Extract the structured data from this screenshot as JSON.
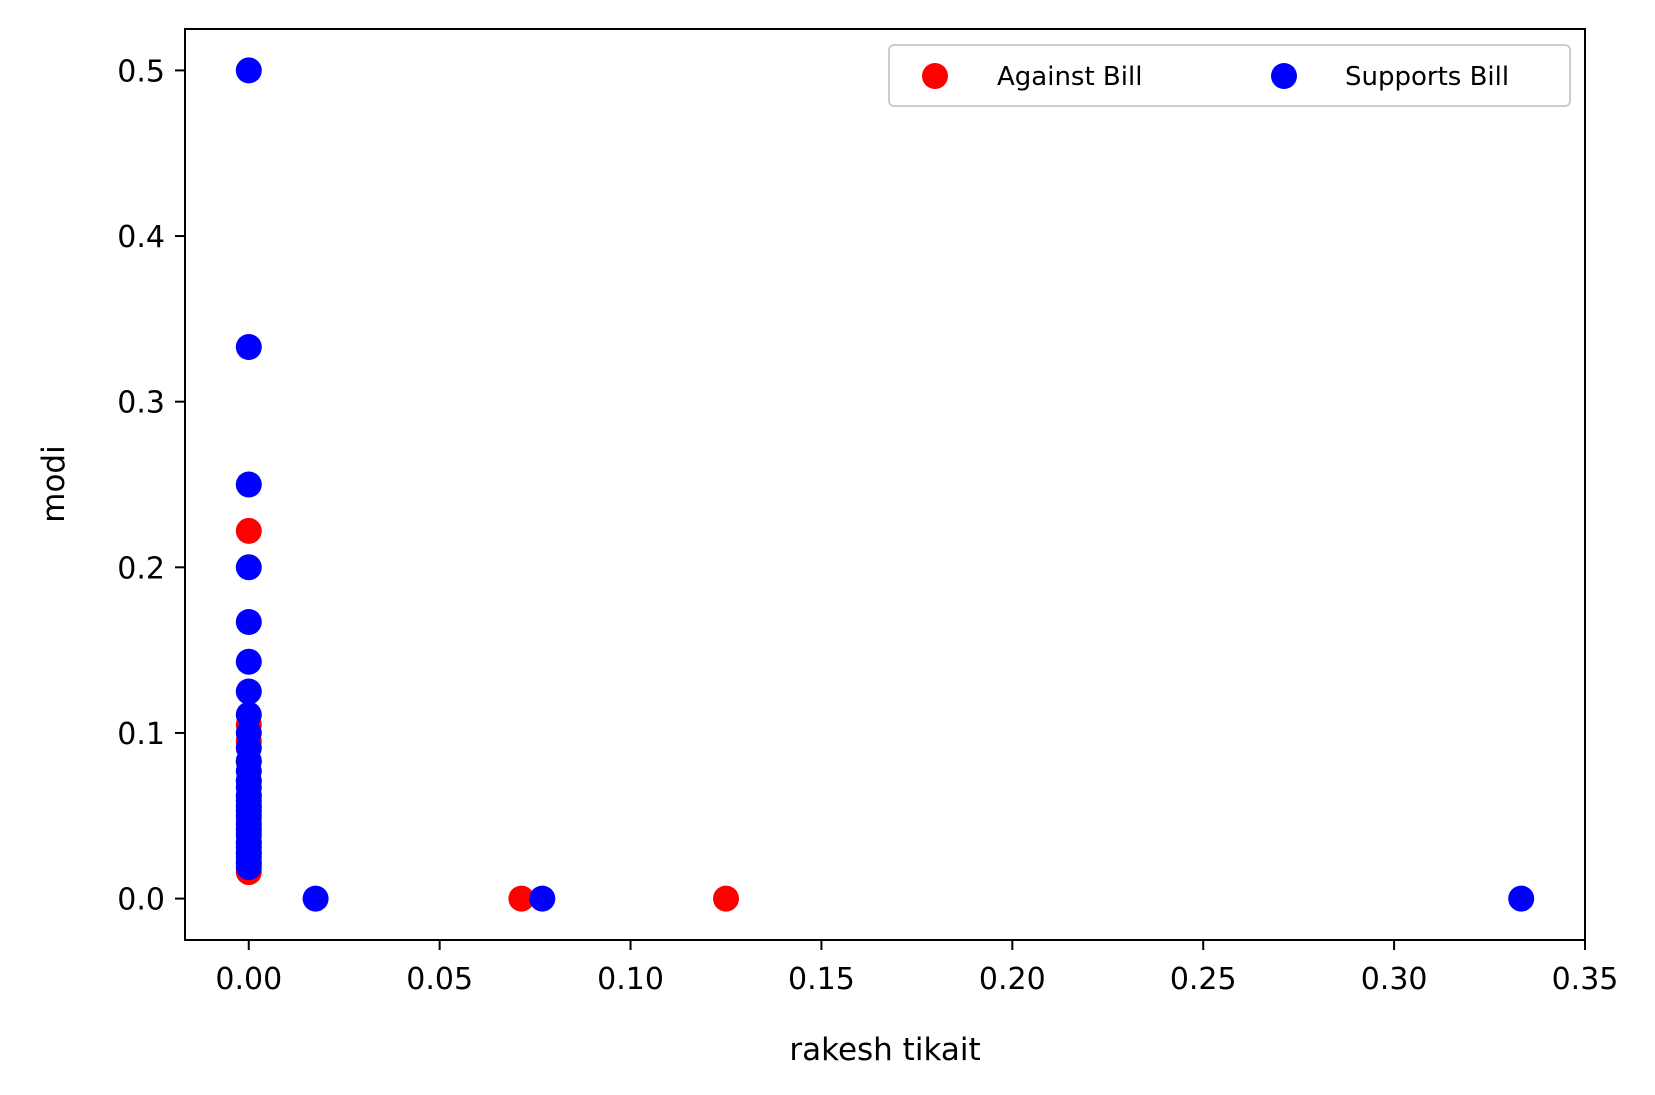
{
  "chart_data": {
    "type": "scatter",
    "title": "",
    "xlabel": "rakesh tikait",
    "ylabel": "modi",
    "xlim": [
      -0.0167,
      0.35
    ],
    "ylim": [
      -0.025,
      0.525
    ],
    "xticks": [
      0.0,
      0.05,
      0.1,
      0.15,
      0.2,
      0.25,
      0.3,
      0.35
    ],
    "xtick_labels": [
      "0.00",
      "0.05",
      "0.10",
      "0.15",
      "0.20",
      "0.25",
      "0.30",
      "0.35"
    ],
    "yticks": [
      0.0,
      0.1,
      0.2,
      0.3,
      0.4,
      0.5
    ],
    "ytick_labels": [
      "0.0",
      "0.1",
      "0.2",
      "0.3",
      "0.4",
      "0.5"
    ],
    "legend_position": "top-right",
    "series": [
      {
        "name": "Against Bill",
        "color": "#ff0000",
        "points": [
          [
            0.0,
            0.222
          ],
          [
            0.0,
            0.105
          ],
          [
            0.0,
            0.095
          ],
          [
            0.0,
            0.083
          ],
          [
            0.0,
            0.071
          ],
          [
            0.0,
            0.062
          ],
          [
            0.0,
            0.055
          ],
          [
            0.0,
            0.048
          ],
          [
            0.0,
            0.04
          ],
          [
            0.0,
            0.033
          ],
          [
            0.0,
            0.027
          ],
          [
            0.0,
            0.021
          ],
          [
            0.0,
            0.016
          ],
          [
            0.0714,
            0.0
          ],
          [
            0.125,
            0.0
          ]
        ]
      },
      {
        "name": "Supports Bill",
        "color": "#0000ff",
        "points": [
          [
            0.0,
            0.5
          ],
          [
            0.0,
            0.333
          ],
          [
            0.0,
            0.25
          ],
          [
            0.0,
            0.2
          ],
          [
            0.0,
            0.167
          ],
          [
            0.0,
            0.143
          ],
          [
            0.0,
            0.125
          ],
          [
            0.0,
            0.111
          ],
          [
            0.0,
            0.1
          ],
          [
            0.0,
            0.091
          ],
          [
            0.0,
            0.083
          ],
          [
            0.0,
            0.077
          ],
          [
            0.0,
            0.071
          ],
          [
            0.0,
            0.067
          ],
          [
            0.0,
            0.062
          ],
          [
            0.0,
            0.059
          ],
          [
            0.0,
            0.056
          ],
          [
            0.0,
            0.053
          ],
          [
            0.0,
            0.05
          ],
          [
            0.0,
            0.045
          ],
          [
            0.0,
            0.042
          ],
          [
            0.0,
            0.038
          ],
          [
            0.0,
            0.034
          ],
          [
            0.0,
            0.031
          ],
          [
            0.0,
            0.028
          ],
          [
            0.0,
            0.025
          ],
          [
            0.0,
            0.022
          ],
          [
            0.0,
            0.019
          ],
          [
            0.0175,
            0.0
          ],
          [
            0.0769,
            0.0
          ],
          [
            0.3333,
            0.0
          ]
        ]
      }
    ]
  }
}
